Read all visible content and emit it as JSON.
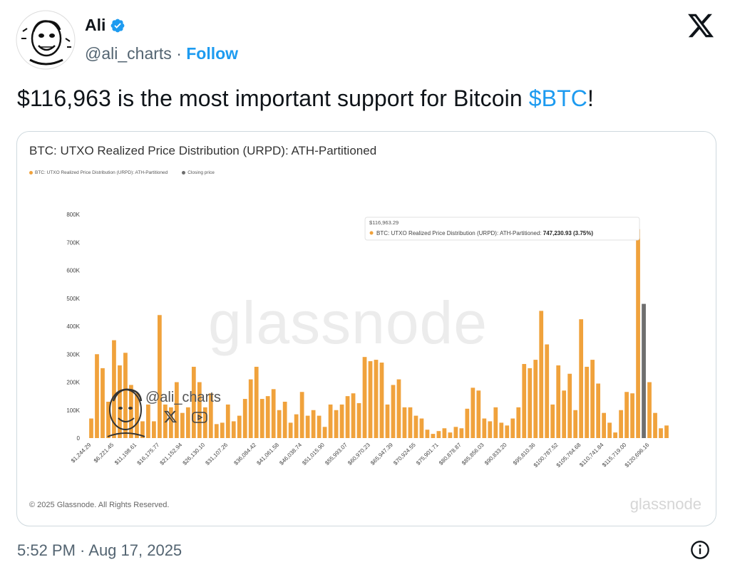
{
  "author": {
    "name": "Ali",
    "handle": "@ali_charts",
    "separator": "·",
    "follow_label": "Follow",
    "verified": true
  },
  "tweet": {
    "text_before": "$116,963 is the most important support for Bitcoin ",
    "cashtag": "$BTC",
    "text_after": "!",
    "timestamp": "5:52 PM · Aug 17, 2025"
  },
  "card": {
    "watermark": "glassnode",
    "footer_logo": "glassnode",
    "copyright": "© 2025 Glassnode. All Rights Reserved.",
    "overlay_handle": "@ali_charts"
  },
  "colors": {
    "bar": "#f0a23c",
    "closing": "#6e6e6e",
    "link": "#1d9bf0",
    "secondary_text": "#536471"
  },
  "icons": [
    "verified-badge-icon",
    "x-logo-icon",
    "info-icon",
    "x-icon",
    "youtube-icon"
  ],
  "chart_data": {
    "type": "bar",
    "title": "BTC: UTXO Realized Price Distribution (URPD): ATH-Partitioned",
    "legend": [
      "BTC: UTXO Realized Price Distribution (URPD): ATH-Partitioned",
      "Closing price"
    ],
    "ylim": [
      0,
      800000
    ],
    "y_ticks": [
      "0",
      "100K",
      "200K",
      "300K",
      "400K",
      "500K",
      "600K",
      "700K",
      "800K"
    ],
    "x_tick_labels": [
      "$1,244.29",
      "$6,221.45",
      "$11,198.61",
      "$16,175.77",
      "$21,152.94",
      "$26,130.10",
      "$31,107.26",
      "$36,084.42",
      "$41,061.58",
      "$46,038.74",
      "$51,015.90",
      "$55,993.07",
      "$60,970.23",
      "$65,947.39",
      "$70,924.55",
      "$75,901.71",
      "$80,878.87",
      "$85,856.03",
      "$90,833.20",
      "$95,810.36",
      "$100,787.52",
      "$105,764.68",
      "$110,741.84",
      "$115,719.00",
      "$120,696.16"
    ],
    "values": [
      70000,
      300000,
      250000,
      130000,
      350000,
      260000,
      305000,
      190000,
      160000,
      60000,
      120000,
      60000,
      440000,
      120000,
      110000,
      200000,
      90000,
      110000,
      255000,
      200000,
      110000,
      160000,
      50000,
      55000,
      120000,
      60000,
      80000,
      140000,
      210000,
      255000,
      140000,
      150000,
      175000,
      100000,
      130000,
      55000,
      85000,
      165000,
      80000,
      100000,
      80000,
      40000,
      120000,
      100000,
      120000,
      150000,
      160000,
      125000,
      290000,
      275000,
      280000,
      270000,
      120000,
      190000,
      210000,
      110000,
      110000,
      80000,
      70000,
      30000,
      15000,
      25000,
      35000,
      20000,
      40000,
      35000,
      105000,
      180000,
      170000,
      70000,
      60000,
      110000,
      55000,
      45000,
      70000,
      110000,
      265000,
      250000,
      280000,
      455000,
      335000,
      120000,
      260000,
      170000,
      230000,
      100000,
      425000,
      255000,
      280000,
      195000,
      90000,
      55000,
      20000,
      100000,
      165000,
      160000,
      747231,
      480000,
      200000,
      90000,
      35000,
      45000
    ],
    "closing_price_index": 97,
    "tooltip": {
      "price": "$116,963.29",
      "label": "BTC: UTXO Realized Price Distribution (URPD): ATH-Partitioned:",
      "value": "747,230.93 (3.75%)"
    }
  }
}
